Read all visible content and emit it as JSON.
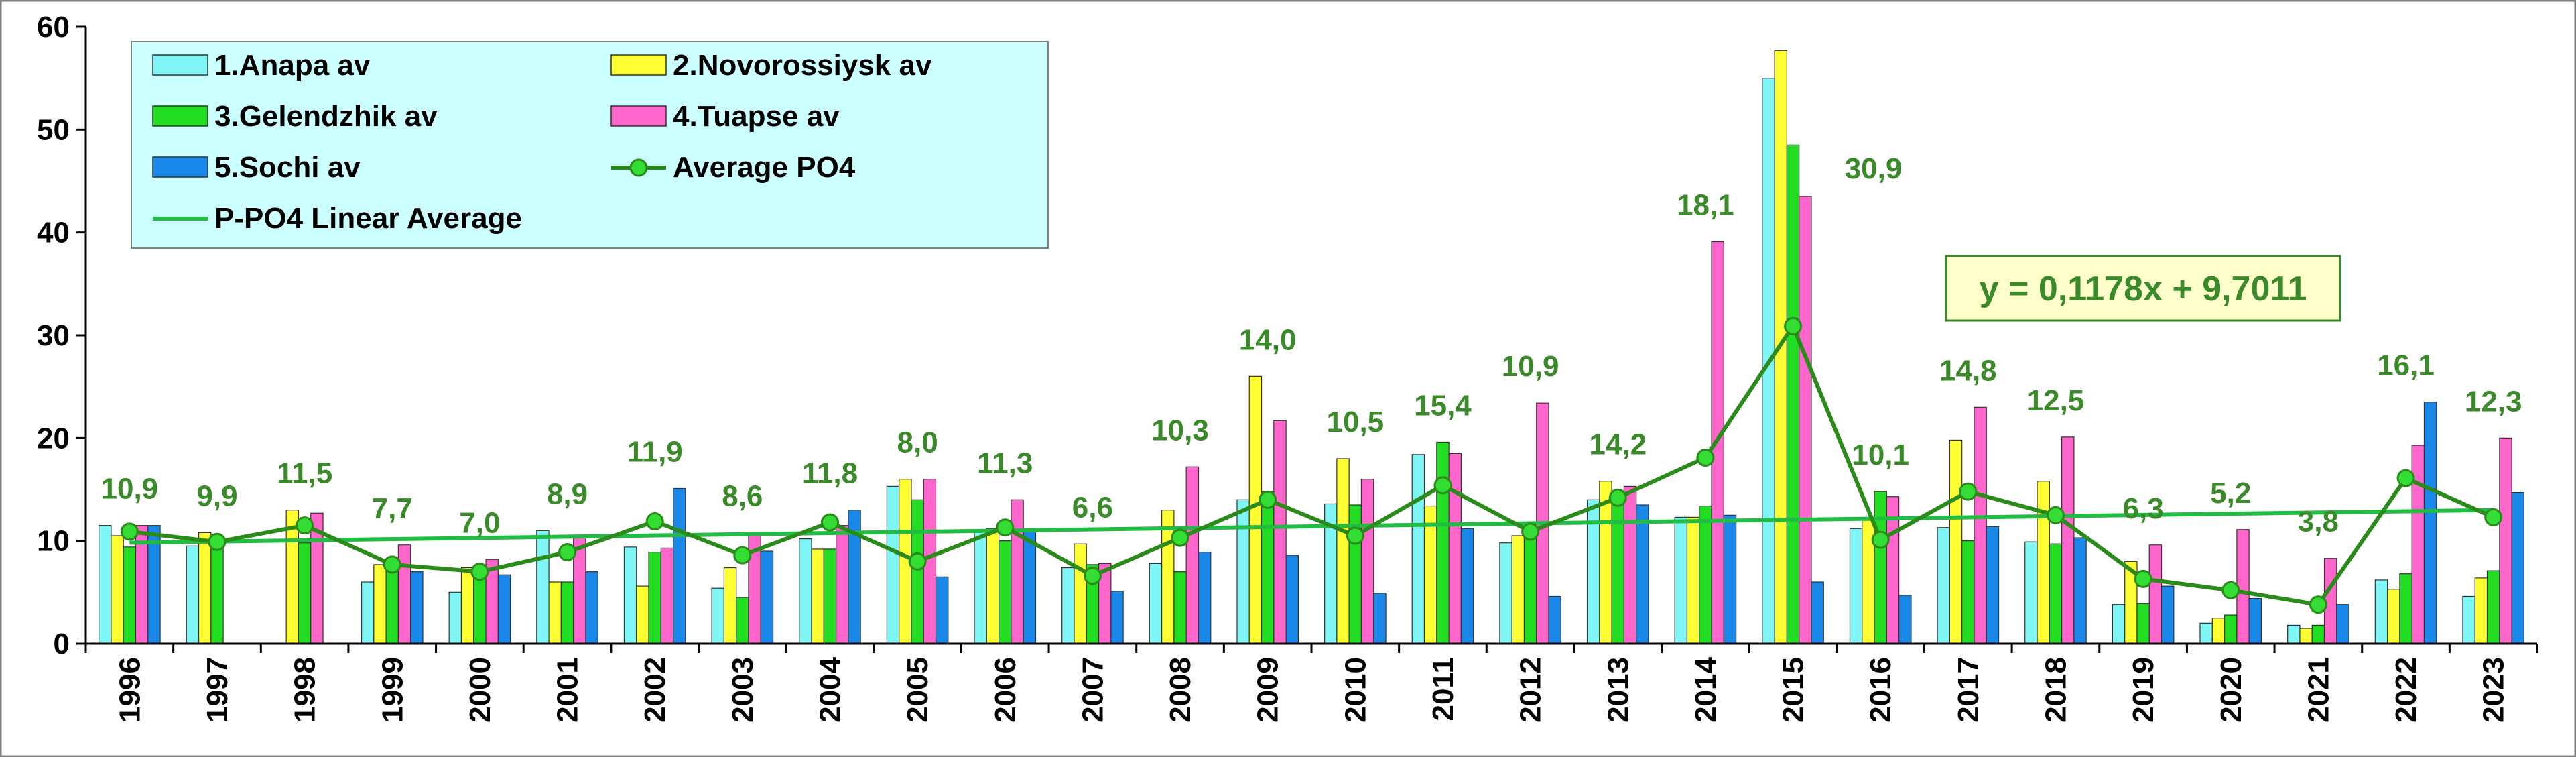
{
  "chart_data": {
    "type": "bar",
    "categories": [
      "1996",
      "1997",
      "1998",
      "1999",
      "2000",
      "2001",
      "2002",
      "2003",
      "2004",
      "2005",
      "2006",
      "2007",
      "2008",
      "2009",
      "2010",
      "2011",
      "2012",
      "2013",
      "2014",
      "2015",
      "2016",
      "2017",
      "2018",
      "2019",
      "2020",
      "2021",
      "2022",
      "2023"
    ],
    "ylim": [
      0,
      60
    ],
    "yticks": [
      0,
      10,
      20,
      30,
      40,
      50,
      60
    ],
    "grid": false,
    "legend_position": "top-left",
    "series": [
      {
        "name": "1.Anapa av",
        "color": "#7ff5f5",
        "values": [
          11.5,
          9.5,
          null,
          6.0,
          5.0,
          11.0,
          9.4,
          5.4,
          10.2,
          15.3,
          11.0,
          7.4,
          7.8,
          14.0,
          13.6,
          18.4,
          9.8,
          14.0,
          12.3,
          55.0,
          11.2,
          11.3,
          9.9,
          3.8,
          2.0,
          1.8,
          6.2,
          4.6
        ]
      },
      {
        "name": "2.Novorossiysk av",
        "color": "#ffff33",
        "values": [
          10.5,
          10.8,
          13.0,
          7.7,
          7.4,
          6.0,
          5.6,
          7.4,
          9.2,
          16.0,
          11.2,
          9.7,
          13.0,
          26.0,
          18.0,
          13.4,
          10.5,
          15.8,
          12.3,
          57.7,
          12.0,
          19.8,
          15.8,
          8.0,
          2.5,
          1.5,
          5.3,
          6.4
        ]
      },
      {
        "name": "3.Gelendzhik av",
        "color": "#22dd22",
        "values": [
          9.4,
          10.2,
          9.8,
          7.0,
          7.4,
          6.0,
          8.9,
          4.5,
          9.2,
          14.0,
          10.0,
          7.7,
          7.0,
          14.8,
          13.5,
          19.6,
          11.8,
          14.8,
          13.4,
          48.5,
          14.8,
          10.0,
          9.7,
          3.9,
          2.8,
          1.8,
          6.8,
          7.1
        ]
      },
      {
        "name": "4.Tuapse av",
        "color": "#ff66cc",
        "values": [
          11.5,
          null,
          12.7,
          9.6,
          8.2,
          10.4,
          9.3,
          10.8,
          11.5,
          16.0,
          14.0,
          7.8,
          17.2,
          21.7,
          16.0,
          18.5,
          23.4,
          15.3,
          39.1,
          43.5,
          14.3,
          23.0,
          20.1,
          9.6,
          11.1,
          8.3,
          19.3,
          20.0
        ]
      },
      {
        "name": "5.Sochi av",
        "color": "#1a88e8",
        "values": [
          11.5,
          null,
          null,
          7.0,
          6.7,
          7.0,
          15.1,
          9.0,
          13.0,
          6.5,
          11.0,
          5.1,
          8.9,
          8.6,
          4.9,
          11.2,
          4.6,
          13.5,
          12.5,
          6.0,
          4.7,
          11.4,
          10.3,
          5.6,
          4.4,
          3.8,
          23.5,
          14.7
        ]
      }
    ],
    "average": {
      "name": "Average PO4",
      "color": "#2a8a1a",
      "marker_color": "#33dd33",
      "values": [
        10.9,
        9.9,
        11.5,
        7.7,
        7.0,
        8.9,
        11.9,
        8.6,
        11.8,
        8.0,
        11.3,
        6.6,
        10.3,
        14.0,
        10.5,
        15.4,
        10.9,
        14.2,
        18.1,
        30.9,
        10.1,
        14.8,
        12.5,
        6.3,
        5.2,
        3.8,
        16.1,
        12.3
      ],
      "labels": [
        "10,9",
        "9,9",
        "11,5",
        "7,7",
        "7,0",
        "8,9",
        "11,9",
        "8,6",
        "11,8",
        "8,0",
        "11,3",
        "6,6",
        "10,3",
        "14,0",
        "10,5",
        "15,4",
        "10,9",
        "14,2",
        "18,1",
        "30,9",
        "10,1",
        "14,8",
        "12,5",
        "6,3",
        "5,2",
        "3,8",
        "16,1",
        "12,3"
      ]
    },
    "trend": {
      "name": "P-PO4 Linear Average",
      "color": "#22bb44",
      "slope": 0.1178,
      "intercept": 9.7011,
      "equation": "y = 0,1178x + 9,7011"
    }
  }
}
